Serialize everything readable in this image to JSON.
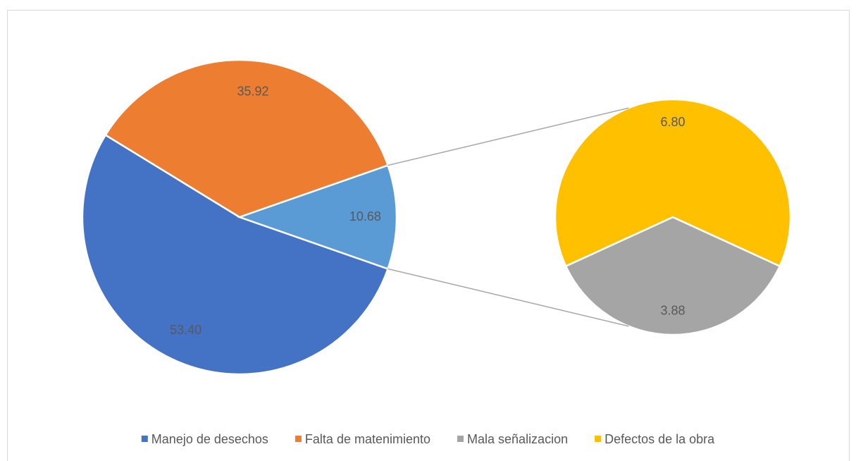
{
  "chart_data": {
    "type": "pie_of_pie",
    "categories": [
      "Manejo de desechos",
      "Falta de matenimiento",
      "Mala señalizacion",
      "Defectos de la obra"
    ],
    "values": [
      53.4,
      35.92,
      3.88,
      6.8
    ],
    "value_labels": [
      "53.40",
      "35.92",
      "3.88",
      "6.80"
    ],
    "colors": [
      "#4472c4",
      "#ed7d31",
      "#a5a5a5",
      "#ffc000"
    ],
    "split": 2,
    "combined": {
      "value": 10.68,
      "label": "10.68",
      "color": "#5b9bd5"
    },
    "legend": "bottom"
  }
}
